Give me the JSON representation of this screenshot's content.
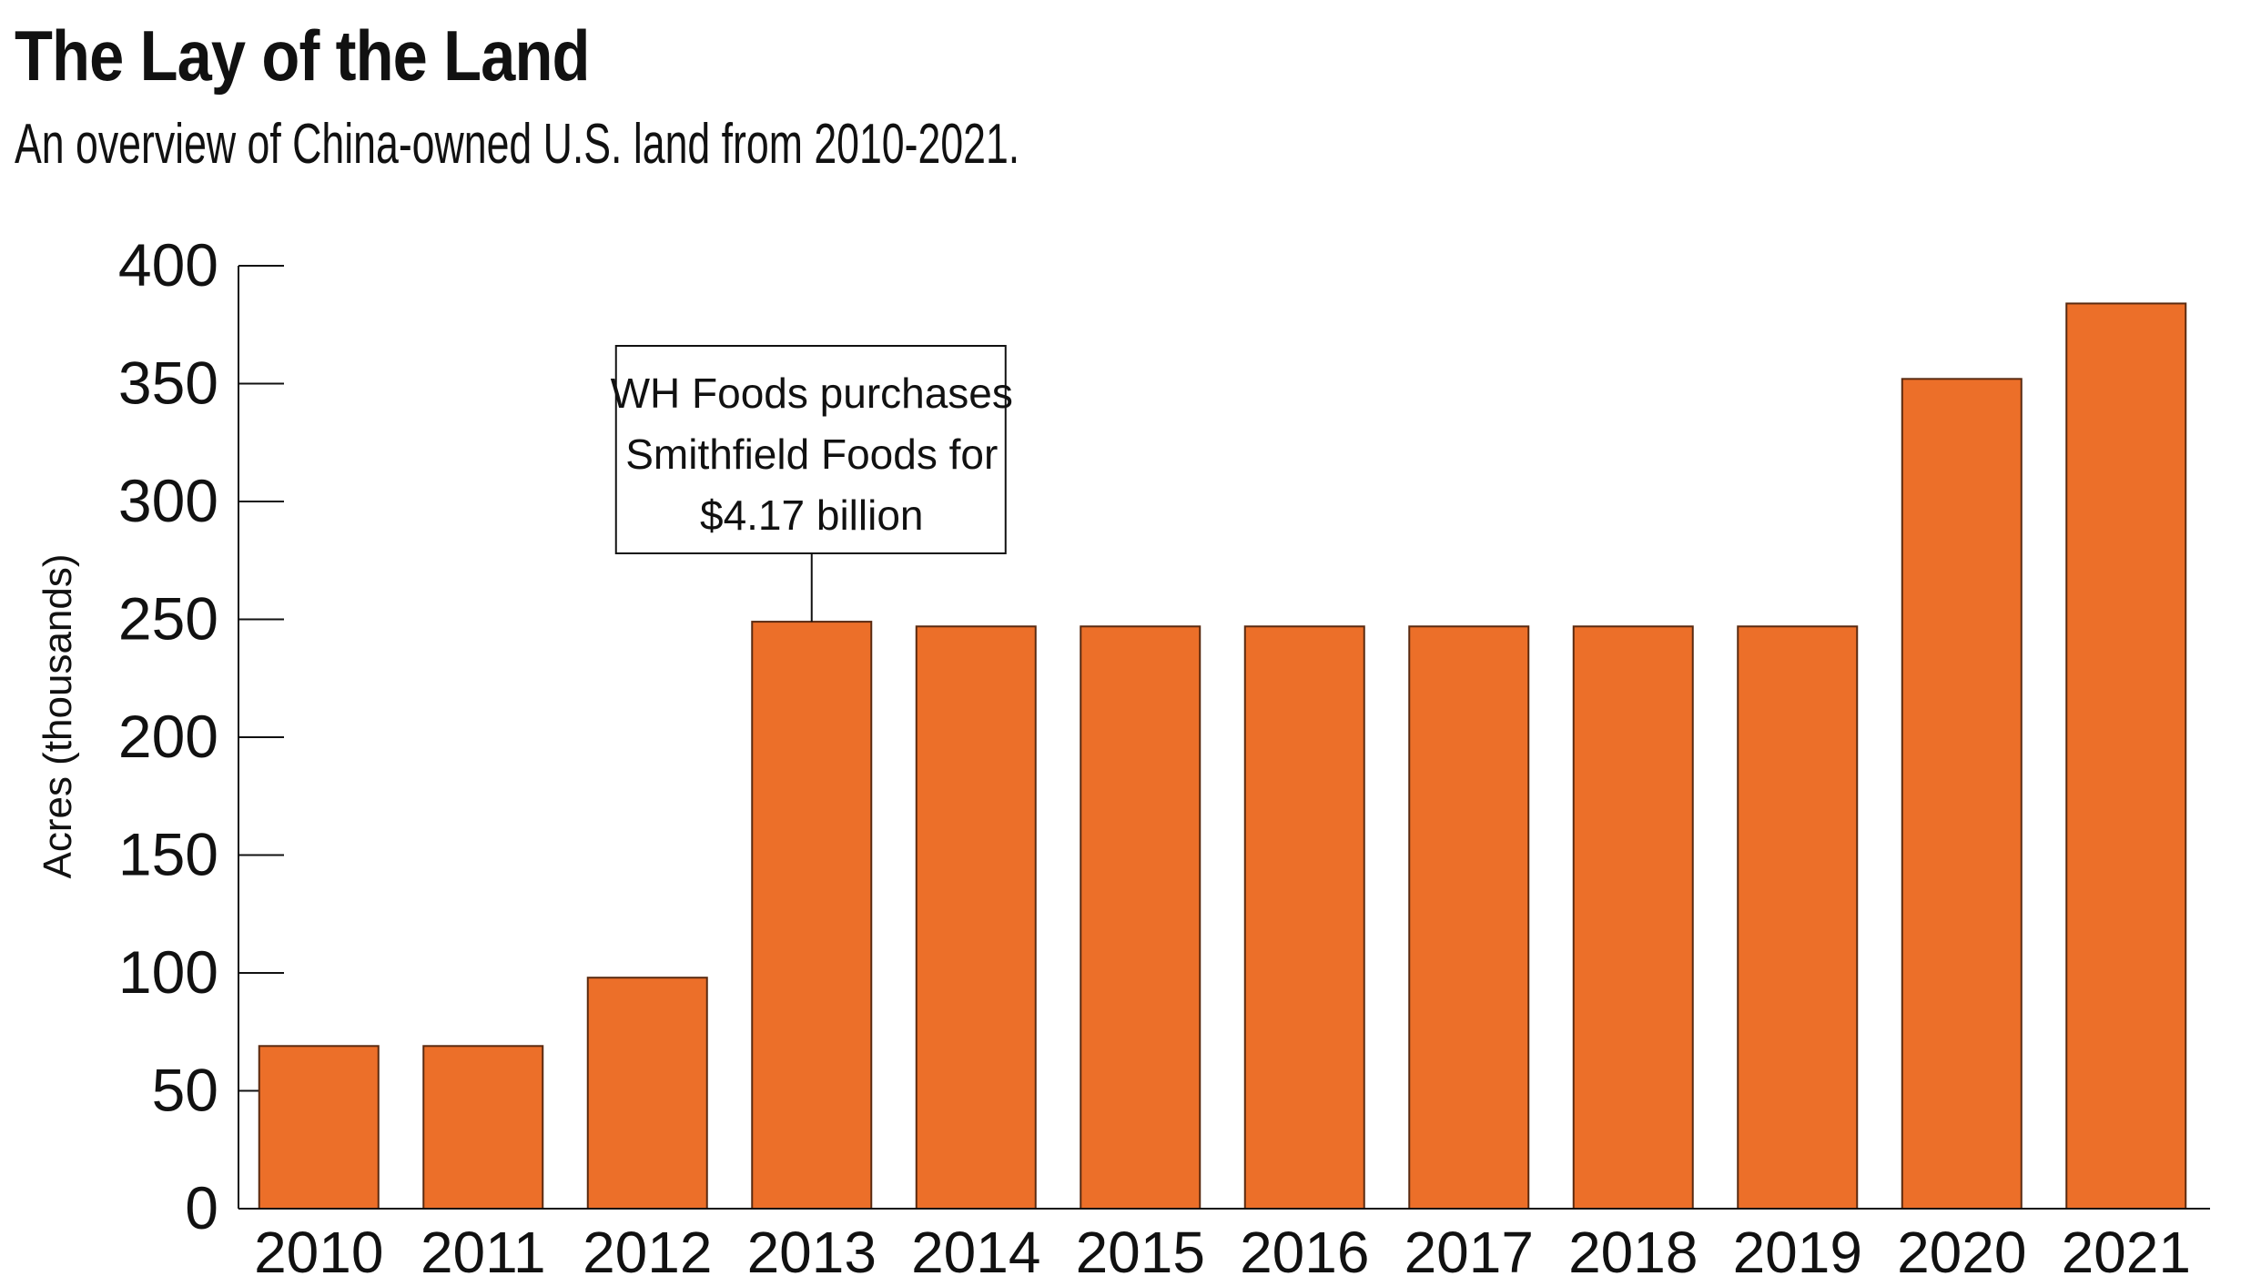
{
  "chart_data": {
    "type": "bar",
    "title": "The Lay of the Land",
    "subtitle": "An overview of China-owned U.S. land from 2010-2021.",
    "xlabel": "",
    "ylabel": "Acres (thousands)",
    "categories": [
      "2010",
      "2011",
      "2012",
      "2013",
      "2014",
      "2015",
      "2016",
      "2017",
      "2018",
      "2019",
      "2020",
      "2021"
    ],
    "values": [
      69,
      69,
      98,
      249,
      247,
      247,
      247,
      247,
      247,
      247,
      352,
      384
    ],
    "ylim": [
      0,
      400
    ],
    "yticks": [
      0,
      50,
      100,
      150,
      200,
      250,
      300,
      350,
      400
    ],
    "grid": false,
    "bar_color": "#ec6f29",
    "bar_edge_color": "#5a2a10",
    "annotations": [
      {
        "category": "2013",
        "lines": [
          "WH Foods purchases",
          "Smithfield Foods for",
          "$4.17 billion"
        ]
      }
    ]
  }
}
